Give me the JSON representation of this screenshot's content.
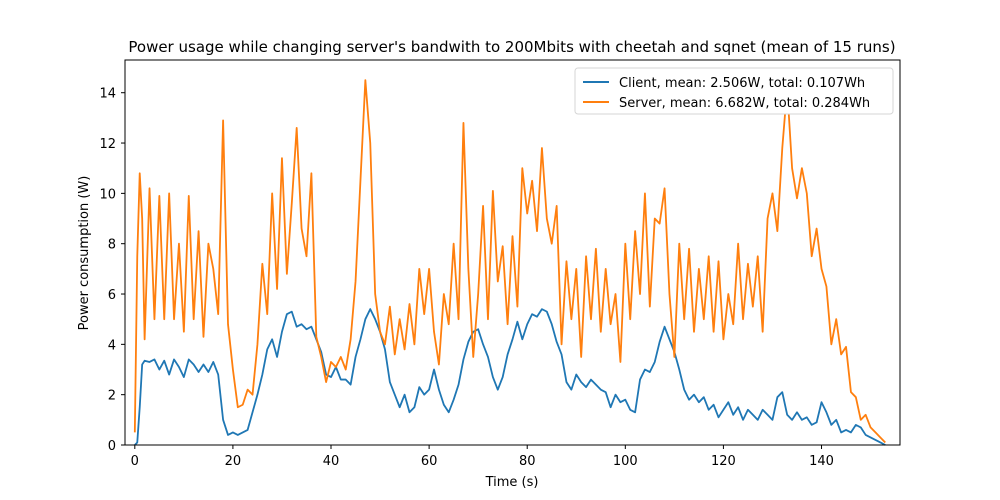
{
  "chart_data": {
    "type": "line",
    "title": "Power usage while changing server's bandwith to 200Mbits with cheetah and sqnet (mean of 15 runs)",
    "xlabel": "Time (s)",
    "ylabel": "Power consumption (W)",
    "xlim": [
      -2,
      156
    ],
    "ylim": [
      0,
      15.3
    ],
    "x_ticks": [
      0,
      20,
      40,
      60,
      80,
      100,
      120,
      140
    ],
    "y_ticks": [
      0,
      2,
      4,
      6,
      8,
      10,
      12,
      14
    ],
    "x_tick_labels": [
      "0",
      "20",
      "40",
      "60",
      "80",
      "100",
      "120",
      "140"
    ],
    "y_tick_labels": [
      "0",
      "2",
      "4",
      "6",
      "8",
      "10",
      "12",
      "14"
    ],
    "grid": false,
    "legend_position": "top-right",
    "series": [
      {
        "name": "Client, mean: 2.506W, total: 0.107Wh",
        "color": "#1f77b4",
        "points": [
          [
            0,
            0
          ],
          [
            0.5,
            0.1
          ],
          [
            1,
            1.5
          ],
          [
            1.5,
            3.2
          ],
          [
            2,
            3.35
          ],
          [
            3,
            3.3
          ],
          [
            4,
            3.4
          ],
          [
            5,
            3.0
          ],
          [
            6,
            3.35
          ],
          [
            7,
            2.8
          ],
          [
            8,
            3.4
          ],
          [
            9,
            3.1
          ],
          [
            10,
            2.7
          ],
          [
            11,
            3.4
          ],
          [
            12,
            3.2
          ],
          [
            13,
            2.9
          ],
          [
            14,
            3.2
          ],
          [
            15,
            2.9
          ],
          [
            16,
            3.3
          ],
          [
            17,
            2.8
          ],
          [
            18,
            1.0
          ],
          [
            19,
            0.4
          ],
          [
            20,
            0.5
          ],
          [
            21,
            0.4
          ],
          [
            22,
            0.5
          ],
          [
            23,
            0.6
          ],
          [
            24,
            1.3
          ],
          [
            25,
            2.0
          ],
          [
            26,
            2.8
          ],
          [
            27,
            3.8
          ],
          [
            28,
            4.2
          ],
          [
            29,
            3.5
          ],
          [
            30,
            4.5
          ],
          [
            31,
            5.2
          ],
          [
            32,
            5.3
          ],
          [
            33,
            4.7
          ],
          [
            34,
            4.8
          ],
          [
            35,
            4.6
          ],
          [
            36,
            4.7
          ],
          [
            37,
            4.2
          ],
          [
            38,
            3.7
          ],
          [
            39,
            2.8
          ],
          [
            40,
            2.7
          ],
          [
            41,
            3.1
          ],
          [
            42,
            2.6
          ],
          [
            43,
            2.6
          ],
          [
            44,
            2.4
          ],
          [
            45,
            3.5
          ],
          [
            46,
            4.2
          ],
          [
            47,
            5.0
          ],
          [
            48,
            5.4
          ],
          [
            49,
            5.0
          ],
          [
            50,
            4.5
          ],
          [
            51,
            3.8
          ],
          [
            52,
            2.5
          ],
          [
            53,
            2.0
          ],
          [
            54,
            1.5
          ],
          [
            55,
            2.0
          ],
          [
            56,
            1.3
          ],
          [
            57,
            1.5
          ],
          [
            58,
            2.3
          ],
          [
            59,
            2.0
          ],
          [
            60,
            2.2
          ],
          [
            61,
            3.0
          ],
          [
            62,
            2.2
          ],
          [
            63,
            1.6
          ],
          [
            64,
            1.3
          ],
          [
            65,
            1.8
          ],
          [
            66,
            2.4
          ],
          [
            67,
            3.4
          ],
          [
            68,
            4.1
          ],
          [
            69,
            4.5
          ],
          [
            70,
            4.6
          ],
          [
            71,
            4.0
          ],
          [
            72,
            3.5
          ],
          [
            73,
            2.7
          ],
          [
            74,
            2.2
          ],
          [
            75,
            2.7
          ],
          [
            76,
            3.6
          ],
          [
            77,
            4.2
          ],
          [
            78,
            4.9
          ],
          [
            79,
            4.2
          ],
          [
            80,
            4.8
          ],
          [
            81,
            5.2
          ],
          [
            82,
            5.1
          ],
          [
            83,
            5.4
          ],
          [
            84,
            5.3
          ],
          [
            85,
            4.8
          ],
          [
            86,
            4.1
          ],
          [
            87,
            3.6
          ],
          [
            88,
            2.5
          ],
          [
            89,
            2.2
          ],
          [
            90,
            2.8
          ],
          [
            91,
            2.5
          ],
          [
            92,
            2.3
          ],
          [
            93,
            2.6
          ],
          [
            94,
            2.4
          ],
          [
            95,
            2.2
          ],
          [
            96,
            2.1
          ],
          [
            97,
            1.5
          ],
          [
            98,
            2.0
          ],
          [
            99,
            1.7
          ],
          [
            100,
            1.8
          ],
          [
            101,
            1.4
          ],
          [
            102,
            1.3
          ],
          [
            103,
            2.6
          ],
          [
            104,
            3.0
          ],
          [
            105,
            2.9
          ],
          [
            106,
            3.3
          ],
          [
            107,
            4.1
          ],
          [
            108,
            4.7
          ],
          [
            109,
            4.2
          ],
          [
            110,
            3.7
          ],
          [
            111,
            3.0
          ],
          [
            112,
            2.2
          ],
          [
            113,
            1.8
          ],
          [
            114,
            2.0
          ],
          [
            115,
            1.7
          ],
          [
            116,
            1.9
          ],
          [
            117,
            1.4
          ],
          [
            118,
            1.6
          ],
          [
            119,
            1.1
          ],
          [
            120,
            1.4
          ],
          [
            121,
            1.7
          ],
          [
            122,
            1.2
          ],
          [
            123,
            1.5
          ],
          [
            124,
            1.0
          ],
          [
            125,
            1.4
          ],
          [
            126,
            1.2
          ],
          [
            127,
            1.0
          ],
          [
            128,
            1.4
          ],
          [
            129,
            1.2
          ],
          [
            130,
            1.0
          ],
          [
            131,
            1.9
          ],
          [
            132,
            2.1
          ],
          [
            133,
            1.2
          ],
          [
            134,
            1.0
          ],
          [
            135,
            1.3
          ],
          [
            136,
            1.0
          ],
          [
            137,
            1.1
          ],
          [
            138,
            0.8
          ],
          [
            139,
            0.9
          ],
          [
            140,
            1.7
          ],
          [
            141,
            1.3
          ],
          [
            142,
            0.8
          ],
          [
            143,
            1.0
          ],
          [
            144,
            0.5
          ],
          [
            145,
            0.6
          ],
          [
            146,
            0.5
          ],
          [
            147,
            0.8
          ],
          [
            148,
            0.7
          ],
          [
            149,
            0.4
          ],
          [
            150,
            0.3
          ],
          [
            151,
            0.2
          ],
          [
            152,
            0.1
          ],
          [
            153,
            0.0
          ]
        ]
      },
      {
        "name": "Server, mean: 6.682W, total: 0.284Wh",
        "color": "#ff7f0e",
        "points": [
          [
            0,
            0.5
          ],
          [
            0.5,
            7.5
          ],
          [
            1,
            10.8
          ],
          [
            1.5,
            9.0
          ],
          [
            2,
            4.2
          ],
          [
            3,
            10.2
          ],
          [
            4,
            5.0
          ],
          [
            5,
            9.9
          ],
          [
            6,
            5.0
          ],
          [
            7,
            10.0
          ],
          [
            8,
            5.0
          ],
          [
            9,
            8.0
          ],
          [
            10,
            4.5
          ],
          [
            11,
            9.9
          ],
          [
            12,
            5.0
          ],
          [
            13,
            8.5
          ],
          [
            14,
            4.3
          ],
          [
            15,
            8.0
          ],
          [
            16,
            7.0
          ],
          [
            17,
            5.2
          ],
          [
            18,
            12.9
          ],
          [
            19,
            4.8
          ],
          [
            20,
            3.0
          ],
          [
            21,
            1.5
          ],
          [
            22,
            1.6
          ],
          [
            23,
            2.2
          ],
          [
            24,
            2.0
          ],
          [
            25,
            4.0
          ],
          [
            26,
            7.2
          ],
          [
            27,
            5.2
          ],
          [
            28,
            10.0
          ],
          [
            29,
            6.2
          ],
          [
            30,
            11.4
          ],
          [
            31,
            6.8
          ],
          [
            32,
            9.6
          ],
          [
            33,
            12.6
          ],
          [
            34,
            8.6
          ],
          [
            35,
            7.5
          ],
          [
            36,
            10.8
          ],
          [
            37,
            4.3
          ],
          [
            38,
            3.5
          ],
          [
            39,
            2.5
          ],
          [
            40,
            3.3
          ],
          [
            41,
            3.1
          ],
          [
            42,
            3.5
          ],
          [
            43,
            3.0
          ],
          [
            44,
            4.2
          ],
          [
            45,
            6.5
          ],
          [
            46,
            10.5
          ],
          [
            47,
            14.5
          ],
          [
            48,
            12.0
          ],
          [
            49,
            6.0
          ],
          [
            50,
            4.5
          ],
          [
            51,
            4.0
          ],
          [
            52,
            5.5
          ],
          [
            53,
            3.6
          ],
          [
            54,
            5.0
          ],
          [
            55,
            3.8
          ],
          [
            56,
            5.6
          ],
          [
            57,
            4.0
          ],
          [
            58,
            7.0
          ],
          [
            59,
            5.2
          ],
          [
            60,
            7.0
          ],
          [
            61,
            4.5
          ],
          [
            62,
            3.2
          ],
          [
            63,
            6.0
          ],
          [
            64,
            4.8
          ],
          [
            65,
            8.0
          ],
          [
            66,
            5.0
          ],
          [
            67,
            12.8
          ],
          [
            68,
            7.0
          ],
          [
            69,
            3.5
          ],
          [
            70,
            6.0
          ],
          [
            71,
            9.5
          ],
          [
            72,
            5.0
          ],
          [
            73,
            10.1
          ],
          [
            74,
            6.5
          ],
          [
            75,
            7.9
          ],
          [
            76,
            4.8
          ],
          [
            77,
            8.3
          ],
          [
            78,
            5.5
          ],
          [
            79,
            11.0
          ],
          [
            80,
            9.2
          ],
          [
            81,
            10.5
          ],
          [
            82,
            8.5
          ],
          [
            83,
            11.8
          ],
          [
            84,
            9.0
          ],
          [
            85,
            8.0
          ],
          [
            86,
            9.5
          ],
          [
            87,
            4.0
          ],
          [
            88,
            7.3
          ],
          [
            89,
            5.0
          ],
          [
            90,
            7.0
          ],
          [
            91,
            3.5
          ],
          [
            92,
            7.5
          ],
          [
            93,
            5.0
          ],
          [
            94,
            7.8
          ],
          [
            95,
            4.5
          ],
          [
            96,
            7.0
          ],
          [
            97,
            4.8
          ],
          [
            98,
            6.0
          ],
          [
            99,
            3.3
          ],
          [
            100,
            8.0
          ],
          [
            101,
            5.0
          ],
          [
            102,
            8.5
          ],
          [
            103,
            6.0
          ],
          [
            104,
            10.0
          ],
          [
            105,
            5.5
          ],
          [
            106,
            9.0
          ],
          [
            107,
            8.8
          ],
          [
            108,
            10.2
          ],
          [
            109,
            6.0
          ],
          [
            110,
            3.5
          ],
          [
            111,
            8.0
          ],
          [
            112,
            5.0
          ],
          [
            113,
            7.8
          ],
          [
            114,
            4.5
          ],
          [
            115,
            7.0
          ],
          [
            116,
            5.0
          ],
          [
            117,
            7.5
          ],
          [
            118,
            4.5
          ],
          [
            119,
            7.3
          ],
          [
            120,
            4.2
          ],
          [
            121,
            6.0
          ],
          [
            122,
            4.8
          ],
          [
            123,
            8.0
          ],
          [
            124,
            5.0
          ],
          [
            125,
            7.2
          ],
          [
            126,
            5.5
          ],
          [
            127,
            7.5
          ],
          [
            128,
            4.5
          ],
          [
            129,
            9.0
          ],
          [
            130,
            10.0
          ],
          [
            131,
            8.5
          ],
          [
            132,
            11.8
          ],
          [
            133,
            14.2
          ],
          [
            134,
            11.0
          ],
          [
            135,
            9.8
          ],
          [
            136,
            11.0
          ],
          [
            137,
            10.0
          ],
          [
            138,
            7.5
          ],
          [
            139,
            8.6
          ],
          [
            140,
            7.0
          ],
          [
            141,
            6.3
          ],
          [
            142,
            4.0
          ],
          [
            143,
            5.0
          ],
          [
            144,
            3.6
          ],
          [
            145,
            3.9
          ],
          [
            146,
            2.1
          ],
          [
            147,
            1.9
          ],
          [
            148,
            1.0
          ],
          [
            149,
            1.2
          ],
          [
            150,
            0.7
          ],
          [
            151,
            0.5
          ],
          [
            152,
            0.3
          ],
          [
            153,
            0.1
          ]
        ]
      }
    ]
  }
}
